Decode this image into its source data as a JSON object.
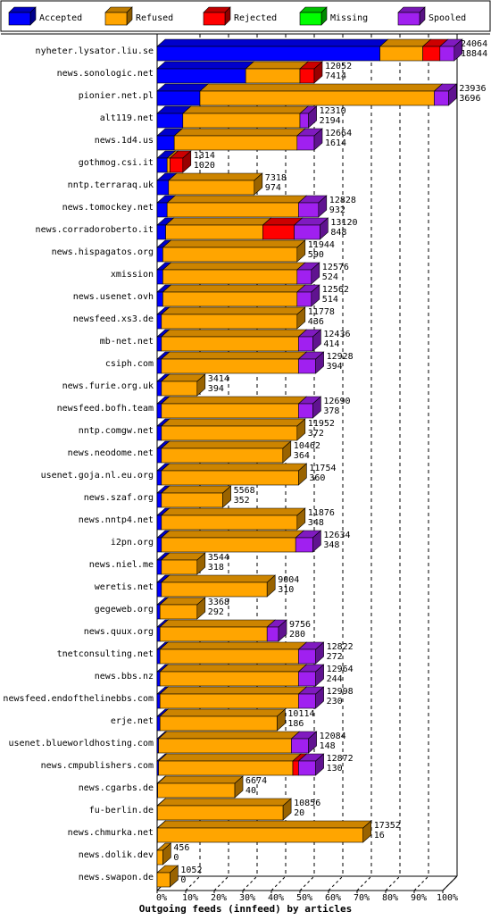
{
  "chart_data": {
    "type": "bar",
    "orientation": "horizontal",
    "stacked": true,
    "xlabel": "Outgoing feeds (innfeed) by articles",
    "xlim": [
      0,
      100
    ],
    "x_ticks": [
      "0%",
      "10%",
      "20%",
      "30%",
      "40%",
      "50%",
      "60%",
      "70%",
      "80%",
      "90%",
      "100%"
    ],
    "grid": "dashed vertical lines at each 10%",
    "legend_placement": "top",
    "series": [
      {
        "name": "Accepted",
        "color": "#0000ff"
      },
      {
        "name": "Refused",
        "color": "#ffa500"
      },
      {
        "name": "Rejected",
        "color": "#ff0000"
      },
      {
        "name": "Missing",
        "color": "#00ff00"
      },
      {
        "name": "Spooled",
        "color": "#a020f0"
      }
    ],
    "rows": [
      {
        "host": "nyheter.lysator.liu.se",
        "label_top": "24064",
        "label_bottom": "18844",
        "segments": [
          78,
          15,
          6,
          0,
          5
        ]
      },
      {
        "host": "news.sonologic.net",
        "label_top": "12052",
        "label_bottom": "7414",
        "segments": [
          31,
          19,
          5,
          0,
          0
        ]
      },
      {
        "host": "pionier.net.pl",
        "label_top": "23936",
        "label_bottom": "3696",
        "segments": [
          15,
          82,
          0,
          0,
          5
        ]
      },
      {
        "host": "alt119.net",
        "label_top": "12310",
        "label_bottom": "2194",
        "segments": [
          9,
          41,
          0,
          0,
          3
        ]
      },
      {
        "host": "news.1d4.us",
        "label_top": "12664",
        "label_bottom": "1614",
        "segments": [
          6,
          43,
          0,
          0,
          6
        ]
      },
      {
        "host": "gothmog.csi.it",
        "label_top": "1314",
        "label_bottom": "1020",
        "segments": [
          3.5,
          1,
          4.5,
          0,
          0
        ]
      },
      {
        "host": "nntp.terraraq.uk",
        "label_top": "7318",
        "label_bottom": "974",
        "segments": [
          4,
          30,
          0,
          0,
          0
        ]
      },
      {
        "host": "news.tomockey.net",
        "label_top": "12828",
        "label_bottom": "932",
        "segments": [
          3.5,
          46,
          0,
          0,
          7
        ]
      },
      {
        "host": "news.corradoroberto.it",
        "label_top": "13120",
        "label_bottom": "848",
        "segments": [
          3,
          34,
          11,
          0,
          9
        ]
      },
      {
        "host": "news.hispagatos.org",
        "label_top": "11944",
        "label_bottom": "590",
        "segments": [
          2,
          47,
          0,
          0,
          0
        ]
      },
      {
        "host": "xmission",
        "label_top": "12576",
        "label_bottom": "524",
        "segments": [
          2,
          47,
          0,
          0,
          5
        ]
      },
      {
        "host": "news.usenet.ovh",
        "label_top": "12562",
        "label_bottom": "514",
        "segments": [
          2,
          47,
          0,
          0,
          5
        ]
      },
      {
        "host": "newsfeed.xs3.de",
        "label_top": "11778",
        "label_bottom": "436",
        "segments": [
          1.5,
          47.5,
          0,
          0,
          0
        ]
      },
      {
        "host": "mb-net.net",
        "label_top": "12436",
        "label_bottom": "414",
        "segments": [
          1.5,
          48,
          0,
          0,
          5
        ]
      },
      {
        "host": "csiph.com",
        "label_top": "12928",
        "label_bottom": "394",
        "segments": [
          1.5,
          48,
          0,
          0,
          6
        ]
      },
      {
        "host": "news.furie.org.uk",
        "label_top": "3414",
        "label_bottom": "394",
        "segments": [
          1.5,
          12.5,
          0,
          0,
          0
        ]
      },
      {
        "host": "newsfeed.bofh.team",
        "label_top": "12690",
        "label_bottom": "378",
        "segments": [
          1.5,
          48,
          0,
          0,
          5
        ]
      },
      {
        "host": "nntp.comgw.net",
        "label_top": "11952",
        "label_bottom": "372",
        "segments": [
          1.5,
          47.5,
          0,
          0,
          0
        ]
      },
      {
        "host": "news.neodome.net",
        "label_top": "10462",
        "label_bottom": "364",
        "segments": [
          1.5,
          42.5,
          0,
          0,
          0
        ]
      },
      {
        "host": "usenet.goja.nl.eu.org",
        "label_top": "11754",
        "label_bottom": "360",
        "segments": [
          1.5,
          48,
          0,
          0,
          0
        ]
      },
      {
        "host": "news.szaf.org",
        "label_top": "5568",
        "label_bottom": "352",
        "segments": [
          1.5,
          21.5,
          0,
          0,
          0
        ]
      },
      {
        "host": "news.nntp4.net",
        "label_top": "11876",
        "label_bottom": "348",
        "segments": [
          1.5,
          47.5,
          0,
          0,
          0
        ]
      },
      {
        "host": "i2pn.org",
        "label_top": "12634",
        "label_bottom": "348",
        "segments": [
          1.5,
          47,
          0,
          0,
          6
        ]
      },
      {
        "host": "news.niel.me",
        "label_top": "3544",
        "label_bottom": "318",
        "segments": [
          1.5,
          12.5,
          0,
          0,
          0
        ]
      },
      {
        "host": "weretis.net",
        "label_top": "9004",
        "label_bottom": "310",
        "segments": [
          1.5,
          37,
          0,
          0,
          0
        ]
      },
      {
        "host": "gegeweb.org",
        "label_top": "3368",
        "label_bottom": "292",
        "segments": [
          1,
          13,
          0,
          0,
          0
        ]
      },
      {
        "host": "news.quux.org",
        "label_top": "9756",
        "label_bottom": "280",
        "segments": [
          1,
          37.5,
          0,
          0,
          4
        ]
      },
      {
        "host": "tnetconsulting.net",
        "label_top": "12822",
        "label_bottom": "272",
        "segments": [
          1,
          48.5,
          0,
          0,
          6
        ]
      },
      {
        "host": "news.bbs.nz",
        "label_top": "12964",
        "label_bottom": "244",
        "segments": [
          1,
          48.5,
          0,
          0,
          6
        ]
      },
      {
        "host": "newsfeed.endofthelinebbs.com",
        "label_top": "12998",
        "label_bottom": "230",
        "segments": [
          1,
          48.5,
          0,
          0,
          6
        ]
      },
      {
        "host": "erje.net",
        "label_top": "10114",
        "label_bottom": "186",
        "segments": [
          1,
          41,
          0,
          0,
          0
        ]
      },
      {
        "host": "usenet.blueworldhosting.com",
        "label_top": "12084",
        "label_bottom": "148",
        "segments": [
          0.5,
          46.5,
          0,
          0,
          6
        ]
      },
      {
        "host": "news.cmpublishers.com",
        "label_top": "12872",
        "label_bottom": "130",
        "segments": [
          0.5,
          47,
          2,
          0,
          6
        ]
      },
      {
        "host": "news.cgarbs.de",
        "label_top": "6674",
        "label_bottom": "40",
        "segments": [
          0.2,
          27,
          0,
          0,
          0
        ]
      },
      {
        "host": "fu-berlin.de",
        "label_top": "10856",
        "label_bottom": "20",
        "segments": [
          0.1,
          44,
          0,
          0,
          0
        ]
      },
      {
        "host": "news.chmurka.net",
        "label_top": "17352",
        "label_bottom": "16",
        "segments": [
          0.1,
          72,
          0,
          0,
          0
        ]
      },
      {
        "host": "news.dolik.dev",
        "label_top": "456",
        "label_bottom": "0",
        "segments": [
          0,
          2,
          0,
          0,
          0
        ]
      },
      {
        "host": "news.swapon.de",
        "label_top": "1052",
        "label_bottom": "0",
        "segments": [
          0,
          4.5,
          0,
          0,
          0
        ]
      }
    ]
  }
}
